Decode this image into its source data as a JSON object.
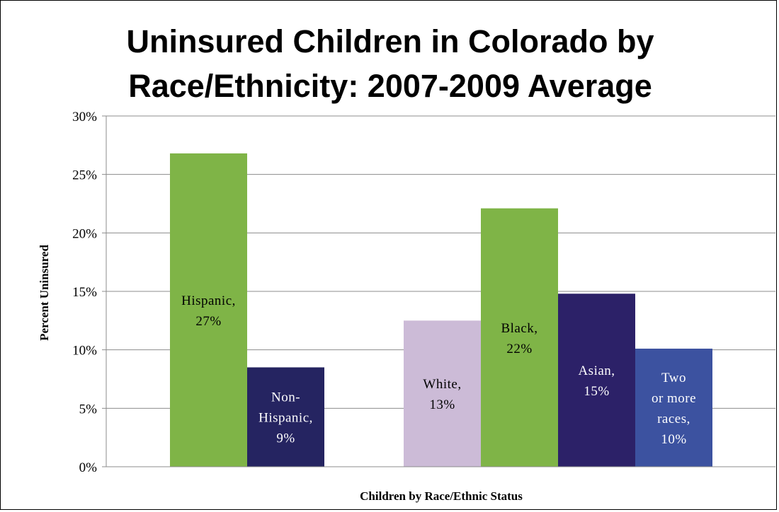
{
  "title_lines": [
    "Uninsured Children in Colorado by",
    "Race/Ethnicity:  2007-2009 Average"
  ],
  "chart_data": {
    "type": "bar",
    "title": "Uninsured Children in Colorado by Race/Ethnicity:  2007-2009 Average",
    "xlabel": "Children by Race/Ethnic Status",
    "ylabel": "Percent Uninsured",
    "ylim": [
      0,
      30
    ],
    "y_ticks": [
      "0%",
      "5%",
      "10%",
      "15%",
      "20%",
      "25%",
      "30%"
    ],
    "grid": true,
    "groups": [
      {
        "bars": [
          "Hispanic",
          "Non-Hispanic"
        ]
      },
      {
        "bars": [
          "White",
          "Black",
          "Asian",
          "Two or more races"
        ]
      }
    ],
    "bars": [
      {
        "category": "Hispanic",
        "value": 26.8,
        "color": "#7fb447",
        "label_lines": [
          "Hispanic,",
          "27%"
        ],
        "label_color": "#000000"
      },
      {
        "category": "Non-Hispanic",
        "value": 8.5,
        "color": "#252461",
        "label_lines": [
          "Non-",
          "Hispanic,",
          "9%"
        ],
        "label_color": "#ffffff"
      },
      {
        "category": "White",
        "value": 12.5,
        "color": "#ccbbd7",
        "label_lines": [
          "White,",
          "13%"
        ],
        "label_color": "#000000"
      },
      {
        "category": "Black",
        "value": 22.1,
        "color": "#7fb447",
        "label_lines": [
          "Black,",
          "22%"
        ],
        "label_color": "#000000"
      },
      {
        "category": "Asian",
        "value": 14.8,
        "color": "#2c2168",
        "label_lines": [
          "Asian,",
          "15%"
        ],
        "label_color": "#ffffff"
      },
      {
        "category": "Two or more races",
        "value": 10.1,
        "color": "#3c52a0",
        "label_lines": [
          "Two",
          "or more",
          "races,",
          "10%"
        ],
        "label_color": "#ffffff"
      }
    ]
  }
}
